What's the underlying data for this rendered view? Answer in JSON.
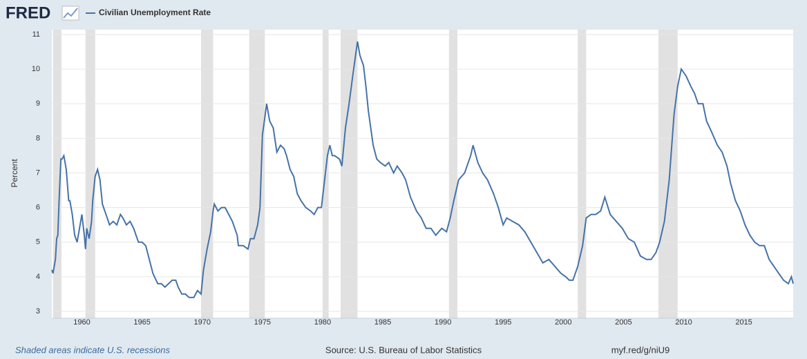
{
  "logo": "FRED",
  "footer": {
    "note": "Shaded areas indicate U.S. recessions",
    "source": "Source: U.S. Bureau of Labor Statistics",
    "link": "myf.red/g/niU9"
  },
  "chart_data": {
    "type": "line",
    "ylabel": "Percent",
    "series": [
      {
        "name": "Civilian Unemployment Rate",
        "color": "#4572a7",
        "x": [
          1957.5,
          1957.6,
          1957.8,
          1957.9,
          1958.0,
          1958.1,
          1958.25,
          1958.35,
          1958.5,
          1958.7,
          1958.9,
          1959.0,
          1959.2,
          1959.4,
          1959.6,
          1959.9,
          1960.0,
          1960.2,
          1960.3,
          1960.4,
          1960.6,
          1960.8,
          1960.9,
          1961.1,
          1961.3,
          1961.5,
          1961.7,
          1962.0,
          1962.3,
          1962.6,
          1962.9,
          1963.2,
          1963.4,
          1963.7,
          1964.0,
          1964.3,
          1964.7,
          1965.0,
          1965.3,
          1965.6,
          1965.9,
          1966.3,
          1966.6,
          1966.9,
          1967.2,
          1967.5,
          1967.8,
          1968.0,
          1968.3,
          1968.6,
          1968.9,
          1969.3,
          1969.6,
          1969.9,
          1970.1,
          1970.4,
          1970.7,
          1970.9,
          1971.0,
          1971.3,
          1971.6,
          1971.9,
          1972.2,
          1972.5,
          1972.9,
          1973.0,
          1973.4,
          1973.8,
          1974.0,
          1974.3,
          1974.6,
          1974.8,
          1975.0,
          1975.2,
          1975.35,
          1975.6,
          1975.9,
          1976.2,
          1976.5,
          1976.8,
          1977.0,
          1977.3,
          1977.6,
          1977.9,
          1978.2,
          1978.6,
          1979.0,
          1979.3,
          1979.6,
          1979.9,
          1980.2,
          1980.4,
          1980.6,
          1980.8,
          1981.0,
          1981.4,
          1981.6,
          1981.9,
          1982.2,
          1982.5,
          1982.9,
          1983.1,
          1983.4,
          1983.6,
          1983.8,
          1984.2,
          1984.5,
          1984.8,
          1985.2,
          1985.5,
          1985.9,
          1986.2,
          1986.6,
          1986.9,
          1987.3,
          1987.8,
          1988.2,
          1988.6,
          1989.0,
          1989.4,
          1989.9,
          1990.3,
          1990.6,
          1990.9,
          1991.3,
          1991.8,
          1992.3,
          1992.5,
          1992.9,
          1993.3,
          1993.7,
          1994.2,
          1994.6,
          1995.0,
          1995.3,
          1995.8,
          1996.3,
          1996.8,
          1997.3,
          1997.8,
          1998.3,
          1998.8,
          1999.3,
          1999.8,
          2000.2,
          2000.5,
          2000.8,
          2001.2,
          2001.6,
          2001.9,
          2002.3,
          2002.7,
          2003.1,
          2003.45,
          2003.9,
          2004.4,
          2004.9,
          2005.4,
          2005.9,
          2006.4,
          2006.9,
          2007.3,
          2007.7,
          2008.0,
          2008.4,
          2008.8,
          2009.2,
          2009.5,
          2009.8,
          2010.2,
          2010.6,
          2010.9,
          2011.2,
          2011.6,
          2011.9,
          2012.3,
          2012.8,
          2013.2,
          2013.6,
          2013.9,
          2014.3,
          2014.7,
          2015.1,
          2015.5,
          2015.9,
          2016.3,
          2016.7,
          2017.1,
          2017.5,
          2017.9,
          2018.3,
          2018.7,
          2018.95,
          2019.1
        ],
        "values": [
          4.2,
          4.1,
          4.5,
          5.1,
          5.2,
          6.2,
          7.4,
          7.4,
          7.5,
          7.1,
          6.2,
          6.2,
          5.8,
          5.2,
          5.0,
          5.6,
          5.8,
          5.2,
          4.8,
          5.4,
          5.1,
          5.6,
          6.2,
          6.9,
          7.1,
          6.8,
          6.1,
          5.8,
          5.5,
          5.6,
          5.5,
          5.8,
          5.7,
          5.5,
          5.6,
          5.4,
          5.0,
          5.0,
          4.9,
          4.5,
          4.1,
          3.8,
          3.8,
          3.7,
          3.8,
          3.9,
          3.9,
          3.7,
          3.5,
          3.5,
          3.4,
          3.4,
          3.6,
          3.5,
          4.2,
          4.8,
          5.3,
          5.9,
          6.1,
          5.9,
          6.0,
          6.0,
          5.8,
          5.6,
          5.2,
          4.9,
          4.9,
          4.8,
          5.1,
          5.1,
          5.5,
          6.0,
          8.1,
          8.6,
          9.0,
          8.5,
          8.3,
          7.6,
          7.8,
          7.7,
          7.5,
          7.1,
          6.9,
          6.4,
          6.2,
          6.0,
          5.9,
          5.8,
          6.0,
          6.0,
          6.9,
          7.5,
          7.8,
          7.5,
          7.5,
          7.4,
          7.2,
          8.3,
          9.0,
          9.8,
          10.8,
          10.4,
          10.1,
          9.5,
          8.8,
          7.8,
          7.4,
          7.3,
          7.2,
          7.3,
          7.0,
          7.2,
          7.0,
          6.8,
          6.3,
          5.9,
          5.7,
          5.4,
          5.4,
          5.2,
          5.4,
          5.3,
          5.7,
          6.2,
          6.8,
          7.0,
          7.5,
          7.8,
          7.3,
          7.0,
          6.8,
          6.4,
          6.0,
          5.5,
          5.7,
          5.6,
          5.5,
          5.3,
          5.0,
          4.7,
          4.4,
          4.5,
          4.3,
          4.1,
          4.0,
          3.9,
          3.9,
          4.3,
          4.9,
          5.7,
          5.8,
          5.8,
          5.9,
          6.3,
          5.8,
          5.6,
          5.4,
          5.1,
          5.0,
          4.6,
          4.5,
          4.5,
          4.7,
          5.0,
          5.6,
          6.8,
          8.7,
          9.5,
          10.0,
          9.8,
          9.5,
          9.3,
          9.0,
          9.0,
          8.5,
          8.2,
          7.8,
          7.6,
          7.2,
          6.7,
          6.2,
          5.9,
          5.5,
          5.2,
          5.0,
          4.9,
          4.9,
          4.5,
          4.3,
          4.1,
          3.9,
          3.8,
          4.0,
          3.8
        ]
      }
    ],
    "recessions": [
      [
        1957.6,
        1958.3
      ],
      [
        1960.3,
        1961.1
      ],
      [
        1969.9,
        1970.9
      ],
      [
        1973.9,
        1975.2
      ],
      [
        1980.0,
        1980.5
      ],
      [
        1981.5,
        1982.9
      ],
      [
        1990.5,
        1991.2
      ],
      [
        2001.2,
        2001.9
      ],
      [
        2007.9,
        2009.5
      ]
    ],
    "recession_color": "#e1e1e1",
    "xlim": [
      1957.5,
      2019.1
    ],
    "ylim": [
      3,
      11
    ],
    "xticks": [
      1960,
      1965,
      1970,
      1975,
      1980,
      1985,
      1990,
      1995,
      2000,
      2005,
      2010,
      2015
    ],
    "yticks": [
      3,
      4,
      5,
      6,
      7,
      8,
      9,
      10,
      11
    ],
    "grid": true
  }
}
